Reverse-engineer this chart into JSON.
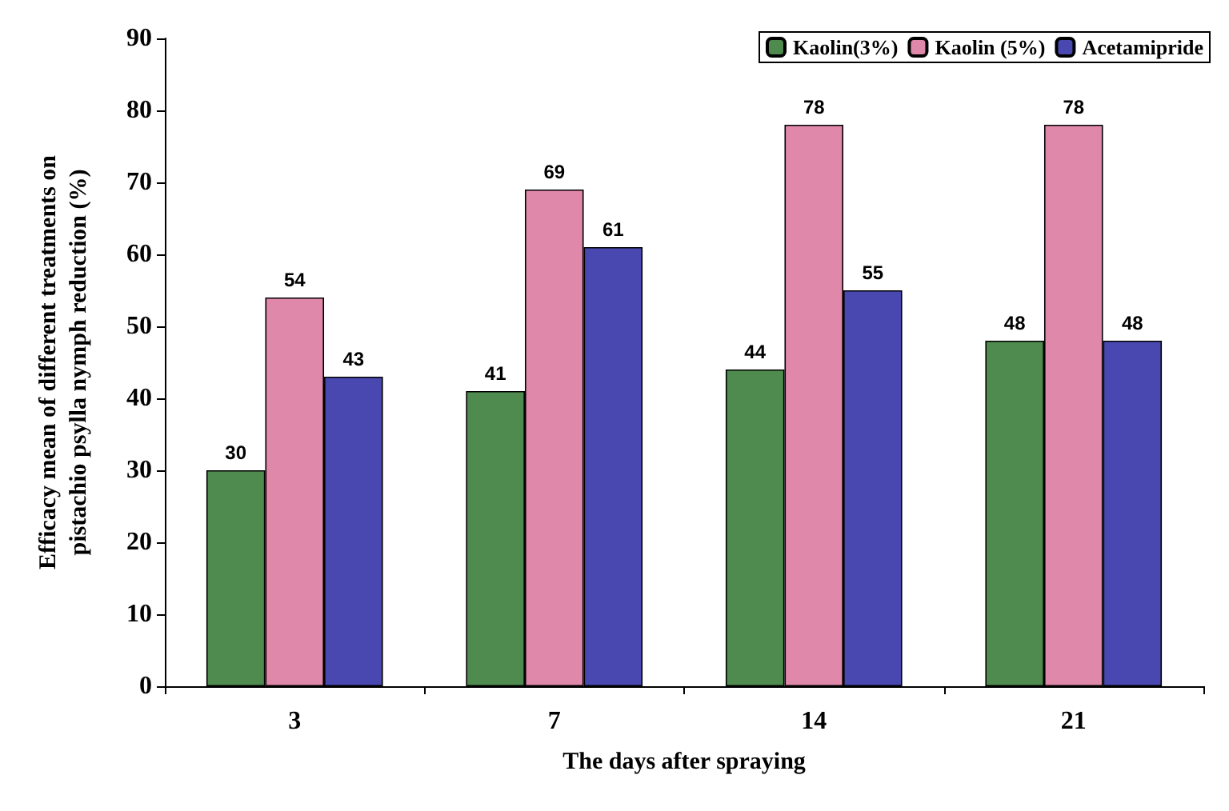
{
  "chart_data": {
    "type": "bar",
    "xlabel": "The days after spraying",
    "ylabel": "Efficacy mean of different treatments on\npistachio psylla nymph reduction (%)",
    "categories": [
      "3",
      "7",
      "14",
      "21"
    ],
    "series": [
      {
        "name": "Kaolin(3%)",
        "color": "#4f8a4f",
        "values": [
          30,
          41,
          44,
          48
        ]
      },
      {
        "name": "Kaolin (5%)",
        "color": "#e088aa",
        "values": [
          54,
          69,
          78,
          78
        ]
      },
      {
        "name": "Acetamipride",
        "color": "#4848b0",
        "values": [
          43,
          61,
          55,
          48
        ]
      }
    ],
    "ylim": [
      0,
      90
    ],
    "yticks": [
      0,
      10,
      20,
      30,
      40,
      50,
      60,
      70,
      80,
      90
    ],
    "grid": false,
    "legend": "top right",
    "data_labels": true
  }
}
